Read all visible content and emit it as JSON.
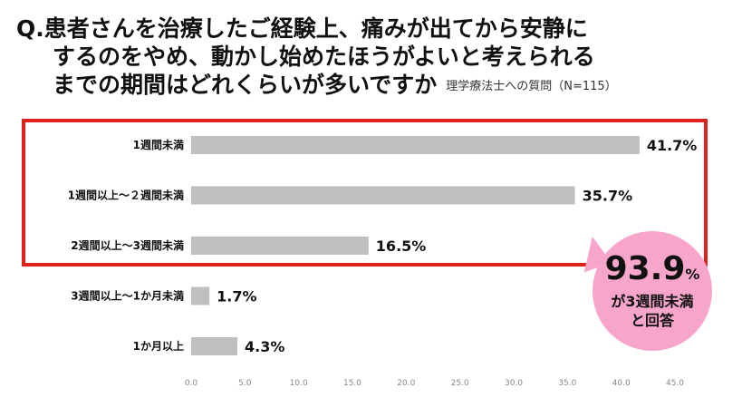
{
  "header": {
    "title_line1": "Q.患者さんを治療したご経験上、痛みが出てから安静に",
    "title_line2": "するのをやめ、動かし始めたほうがよいと考えられる",
    "title_line3": "までの期間はどれくらいが多いですか",
    "subtitle": "理学療法士への質問（N=115）"
  },
  "callout": {
    "number": "93.9",
    "unit": "%",
    "text_line1": "が3週間未満",
    "text_line2": "と回答",
    "color": "#f7a5cb"
  },
  "highlight_color": "#e0221b",
  "chart_data": {
    "type": "bar",
    "orientation": "horizontal",
    "categories": [
      "1週間未満",
      "1週間以上～２週間未満",
      "2週間以上～3週間未満",
      "3週間以上～1か月未満",
      "1か月以上"
    ],
    "values": [
      41.7,
      35.7,
      16.5,
      1.7,
      4.3
    ],
    "value_labels": [
      "41.7%",
      "35.7%",
      "16.5%",
      "1.7%",
      "4.3%"
    ],
    "xlim": [
      0,
      45
    ],
    "xticks": [
      "0.0",
      "5.0",
      "10.0",
      "15.0",
      "20.0",
      "25.0",
      "30.0",
      "35.0",
      "40.0",
      "45.0"
    ],
    "bar_color": "#bfbfbf",
    "grid": false
  }
}
